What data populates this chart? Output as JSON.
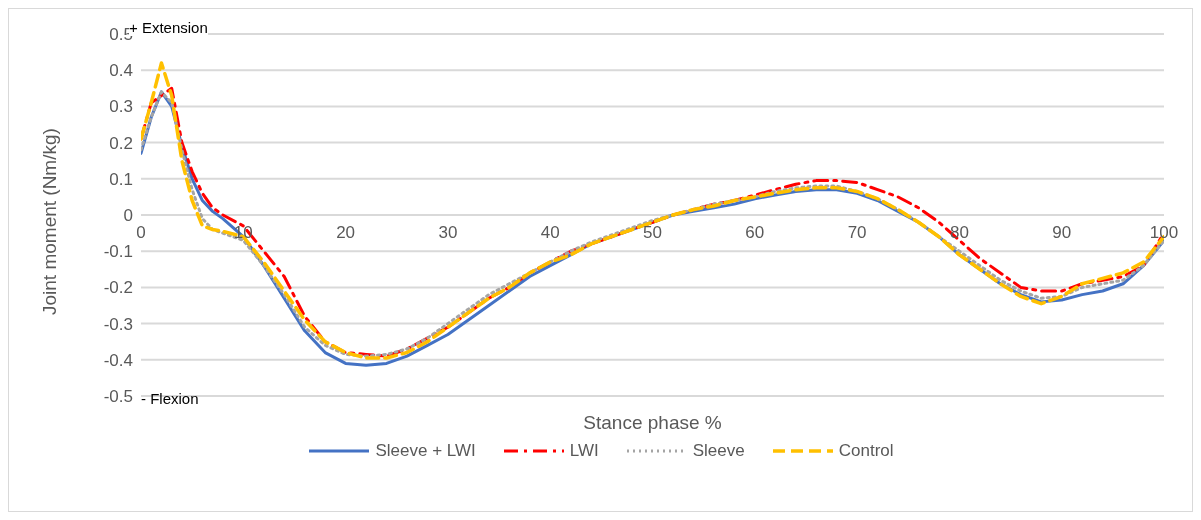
{
  "chart_data": {
    "type": "line",
    "xlabel": "Stance phase %",
    "ylabel": "Joint moment (Nm/kg)",
    "annotations": [
      "+ Extension",
      "- Flexion"
    ],
    "x": [
      0,
      1,
      2,
      3,
      4,
      5,
      6,
      7,
      8,
      10,
      12,
      14,
      16,
      18,
      20,
      22,
      24,
      26,
      28,
      30,
      32,
      34,
      36,
      38,
      40,
      42,
      44,
      46,
      48,
      50,
      52,
      54,
      56,
      58,
      60,
      62,
      64,
      66,
      68,
      70,
      72,
      74,
      76,
      78,
      80,
      82,
      84,
      86,
      88,
      90,
      92,
      94,
      96,
      98,
      100
    ],
    "xlim": [
      0,
      100
    ],
    "xticks": [
      0,
      10,
      20,
      30,
      40,
      50,
      60,
      70,
      80,
      90,
      100
    ],
    "ylim": [
      -0.5,
      0.5
    ],
    "yticks": [
      -0.5,
      -0.4,
      -0.3,
      -0.2,
      -0.1,
      0,
      0.1,
      0.2,
      0.3,
      0.4,
      0.5
    ],
    "grid": "y",
    "legend": "bottom",
    "marker": "none",
    "series": [
      {
        "name": "Sleeve + LWI",
        "color": "#4472c4",
        "line_style": "solid",
        "values": [
          0.17,
          0.27,
          0.34,
          0.3,
          0.19,
          0.1,
          0.04,
          0.01,
          -0.01,
          -0.06,
          -0.14,
          -0.23,
          -0.32,
          -0.38,
          -0.41,
          -0.415,
          -0.41,
          -0.39,
          -0.36,
          -0.33,
          -0.29,
          -0.25,
          -0.21,
          -0.17,
          -0.14,
          -0.11,
          -0.08,
          -0.06,
          -0.04,
          -0.02,
          0,
          0.01,
          0.02,
          0.03,
          0.045,
          0.055,
          0.065,
          0.07,
          0.07,
          0.06,
          0.04,
          0.01,
          -0.02,
          -0.06,
          -0.11,
          -0.15,
          -0.19,
          -0.22,
          -0.24,
          -0.235,
          -0.22,
          -0.21,
          -0.19,
          -0.14,
          -0.07
        ]
      },
      {
        "name": "LWI",
        "color": "#ff0000",
        "line_style": "dashdot",
        "values": [
          0.21,
          0.31,
          0.33,
          0.35,
          0.2,
          0.12,
          0.06,
          0.02,
          0,
          -0.03,
          -0.1,
          -0.17,
          -0.28,
          -0.35,
          -0.38,
          -0.385,
          -0.39,
          -0.37,
          -0.34,
          -0.31,
          -0.27,
          -0.23,
          -0.2,
          -0.16,
          -0.13,
          -0.1,
          -0.08,
          -0.06,
          -0.04,
          -0.02,
          0,
          0.015,
          0.03,
          0.04,
          0.055,
          0.07,
          0.085,
          0.095,
          0.095,
          0.09,
          0.07,
          0.05,
          0.02,
          -0.02,
          -0.07,
          -0.12,
          -0.16,
          -0.2,
          -0.21,
          -0.21,
          -0.19,
          -0.18,
          -0.17,
          -0.14,
          -0.05
        ]
      },
      {
        "name": "Sleeve",
        "color": "#a5a5a5",
        "line_style": "dotted",
        "values": [
          0.18,
          0.27,
          0.34,
          0.31,
          0.18,
          0.07,
          -0.01,
          -0.04,
          -0.05,
          -0.07,
          -0.14,
          -0.22,
          -0.31,
          -0.36,
          -0.385,
          -0.39,
          -0.385,
          -0.37,
          -0.34,
          -0.3,
          -0.26,
          -0.22,
          -0.19,
          -0.16,
          -0.13,
          -0.1,
          -0.075,
          -0.055,
          -0.035,
          -0.015,
          0,
          0.015,
          0.03,
          0.04,
          0.05,
          0.065,
          0.075,
          0.08,
          0.08,
          0.065,
          0.045,
          0.015,
          -0.02,
          -0.06,
          -0.1,
          -0.14,
          -0.18,
          -0.21,
          -0.23,
          -0.225,
          -0.2,
          -0.19,
          -0.18,
          -0.14,
          -0.07
        ]
      },
      {
        "name": "Control",
        "color": "#ffc000",
        "line_style": "dashed",
        "values": [
          0.21,
          0.31,
          0.42,
          0.33,
          0.15,
          0.04,
          -0.03,
          -0.04,
          -0.045,
          -0.06,
          -0.13,
          -0.21,
          -0.29,
          -0.35,
          -0.38,
          -0.395,
          -0.395,
          -0.38,
          -0.35,
          -0.31,
          -0.27,
          -0.23,
          -0.2,
          -0.16,
          -0.13,
          -0.11,
          -0.08,
          -0.06,
          -0.04,
          -0.02,
          0,
          0.015,
          0.025,
          0.04,
          0.05,
          0.06,
          0.07,
          0.075,
          0.075,
          0.065,
          0.045,
          0.015,
          -0.02,
          -0.06,
          -0.11,
          -0.15,
          -0.19,
          -0.225,
          -0.245,
          -0.225,
          -0.19,
          -0.175,
          -0.16,
          -0.13,
          -0.06
        ]
      }
    ]
  }
}
